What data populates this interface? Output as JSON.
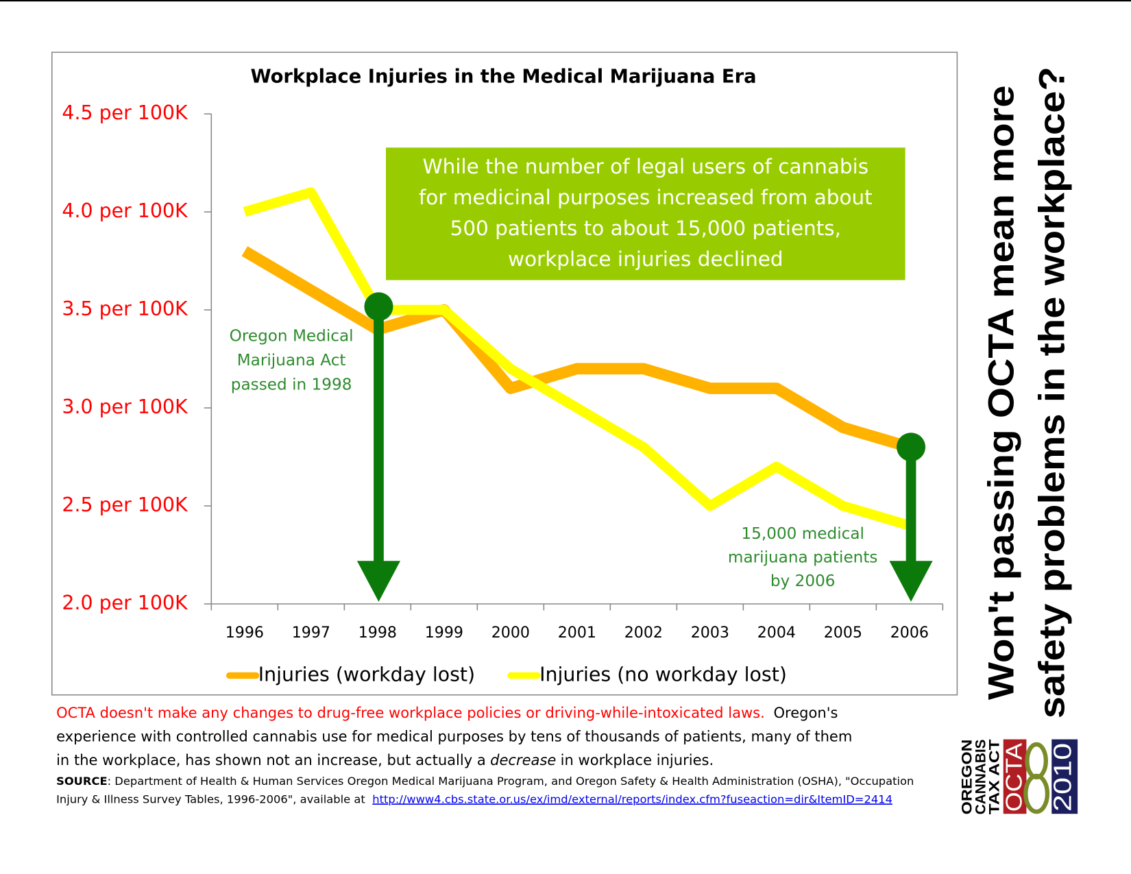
{
  "chart_data": {
    "type": "line",
    "title": "Workplace Injuries in the Medical Marijuana Era",
    "categories": [
      "1996",
      "1997",
      "1998",
      "1999",
      "2000",
      "2001",
      "2002",
      "2003",
      "2004",
      "2005",
      "2006"
    ],
    "series": [
      {
        "name": "Injuries (workday lost)",
        "color": "#ffb300",
        "values": [
          3.8,
          3.6,
          3.4,
          3.5,
          3.1,
          3.2,
          3.2,
          3.1,
          3.1,
          2.9,
          2.8
        ]
      },
      {
        "name": "Injuries (no workday lost)",
        "color": "#ffff00",
        "values": [
          4.0,
          4.1,
          3.5,
          3.5,
          3.2,
          3.0,
          2.8,
          2.5,
          2.7,
          2.5,
          2.4
        ]
      }
    ],
    "ylim": [
      2.0,
      4.5
    ],
    "yticks": [
      {
        "value": 2.0,
        "label": "2.0 per 100K"
      },
      {
        "value": 2.5,
        "label": "2.5 per 100K"
      },
      {
        "value": 3.0,
        "label": "3.0 per 100K"
      },
      {
        "value": 3.5,
        "label": "3.5 per 100K"
      },
      {
        "value": 4.0,
        "label": "4.0 per 100K"
      },
      {
        "value": 4.5,
        "label": "4.5 per 100K"
      }
    ],
    "grid": false,
    "legend": "bottom",
    "annotations": {
      "callout": [
        "While the number of legal users of cannabis",
        "for medicinal purposes increased from about",
        "500 patients to about 15,000 patients,",
        "workplace injuries declined"
      ],
      "law": [
        "Oregon Medical",
        "Marijuana Act",
        "passed in 1998"
      ],
      "patients": [
        "15,000 medical",
        "marijuana patients",
        "by 2006"
      ]
    }
  },
  "side_question": [
    "Won't passing OCTA mean more",
    "safety problems in the workplace?"
  ],
  "footer": {
    "warning": "OCTA doesn't make any changes to drug-free workplace policies or driving-while-intoxicated laws.",
    "body": [
      "Oregon's",
      "experience with controlled cannabis use for medical purposes by tens of thousands of patients, many of them",
      "in the workplace, has shown not an increase, but actually a",
      "decrease",
      "in workplace injuries."
    ]
  },
  "source": {
    "label": "SOURCE",
    "text": [
      ": Department of Health & Human Services Oregon Medical Marijuana Program, and Oregon Safety & Health Administration (OSHA), \"Occupation",
      "Injury & Illness Survey Tables, 1996-2006\", available at"
    ],
    "url": "http://www4.cbs.state.or.us/ex/imd/external/reports/index.cfm?fuseaction=dir&ItemID=2414"
  },
  "logo": {
    "lines": [
      "OREGON",
      "CANNABIS",
      "TAX ACT"
    ],
    "name": "OCTA",
    "year": "2010"
  }
}
